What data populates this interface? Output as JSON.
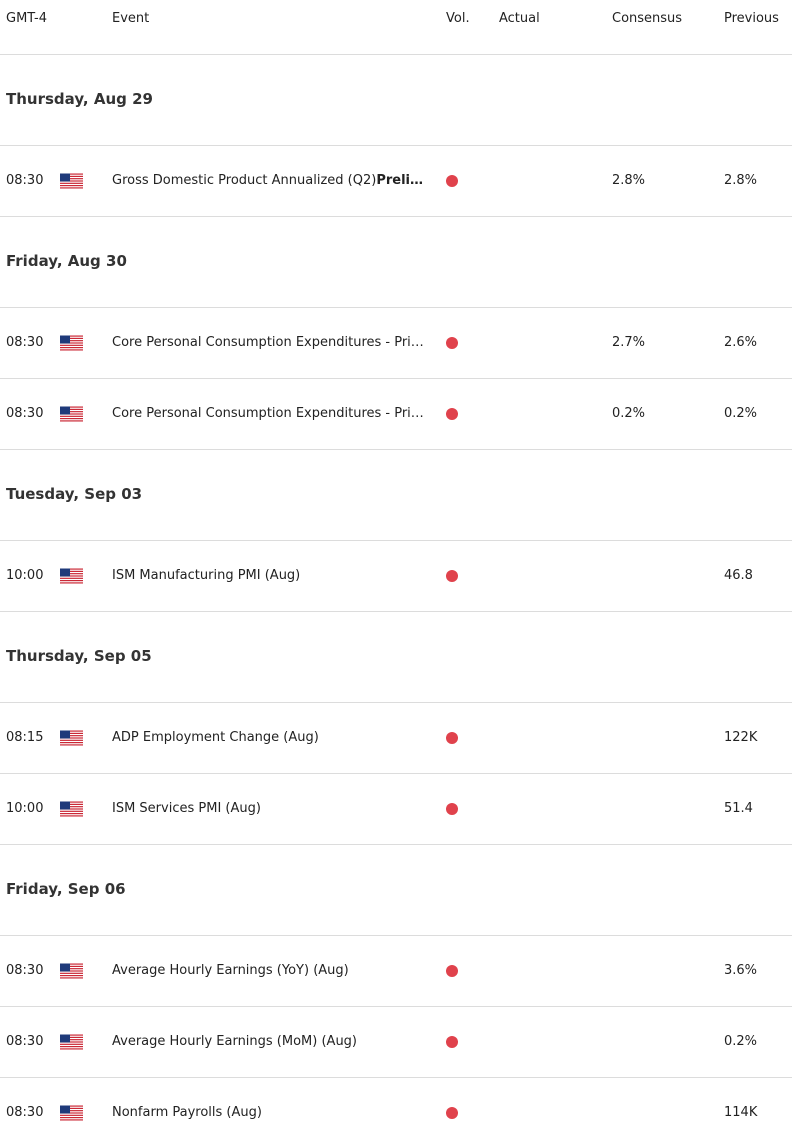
{
  "header": {
    "time": "GMT-4",
    "event": "Event",
    "volatility": "Vol.",
    "actual": "Actual",
    "consensus": "Consensus",
    "previous": "Previous"
  },
  "days": [
    {
      "date": "Thursday, Aug 29",
      "events": [
        {
          "time": "08:30",
          "event": "Gross Domestic Product Annualized (Q2)",
          "event_bold": "Preli…",
          "consensus": "2.8%",
          "previous": "2.8%"
        }
      ]
    },
    {
      "date": "Friday, Aug 30",
      "events": [
        {
          "time": "08:30",
          "event": "Core Personal Consumption Expenditures - Pri…",
          "consensus": "2.7%",
          "previous": "2.6%"
        },
        {
          "time": "08:30",
          "event": "Core Personal Consumption Expenditures - Pri…",
          "consensus": "0.2%",
          "previous": "0.2%"
        }
      ]
    },
    {
      "date": "Tuesday, Sep 03",
      "events": [
        {
          "time": "10:00",
          "event": "ISM Manufacturing PMI (Aug)",
          "previous": "46.8"
        }
      ]
    },
    {
      "date": "Thursday, Sep 05",
      "events": [
        {
          "time": "08:15",
          "event": "ADP Employment Change (Aug)",
          "previous": "122K"
        },
        {
          "time": "10:00",
          "event": "ISM Services PMI (Aug)",
          "previous": "51.4"
        }
      ]
    },
    {
      "date": "Friday, Sep 06",
      "events": [
        {
          "time": "08:30",
          "event": "Average Hourly Earnings (YoY) (Aug)",
          "previous": "3.6%"
        },
        {
          "time": "08:30",
          "event": "Average Hourly Earnings (MoM) (Aug)",
          "previous": "0.2%"
        },
        {
          "time": "08:30",
          "event": "Nonfarm Payrolls (Aug)",
          "previous": "114K"
        }
      ]
    }
  ]
}
